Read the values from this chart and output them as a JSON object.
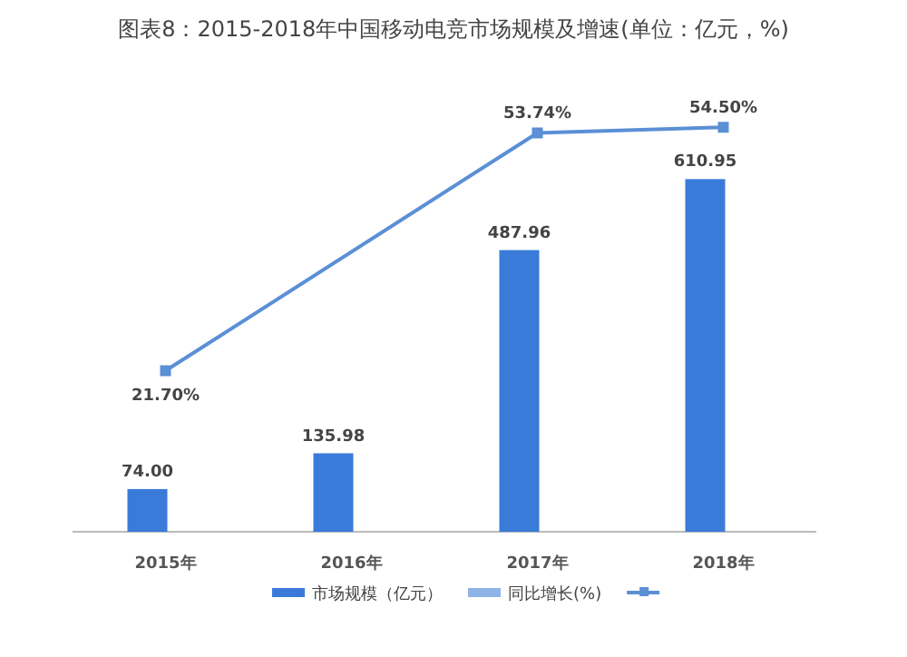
{
  "chart_data": {
    "type": "bar",
    "title": "图表8：2015-2018年中国移动电竞市场规模及增速(单位：亿元，%)",
    "categories": [
      "2015年",
      "2016年",
      "2017年",
      "2018年"
    ],
    "series": [
      {
        "name": "市场规模（亿元）",
        "color": "#3a7bd9",
        "values": [
          74.0,
          135.98,
          487.96,
          610.95
        ],
        "value_labels": [
          "74.00",
          "135.98",
          "487.96",
          "610.95"
        ]
      },
      {
        "name": "同比增长(%)",
        "color": "#8eb3e6",
        "values": [
          null,
          null,
          null,
          null
        ]
      },
      {
        "type": "line",
        "axis": "y2",
        "color": "#5b8fd6",
        "values": [
          21.7,
          null,
          53.74,
          54.5
        ],
        "value_labels": [
          "21.70%",
          null,
          "53.74%",
          "54.50%"
        ]
      }
    ],
    "ylim": [
      0,
      720
    ],
    "y2lim": [
      0,
      56
    ],
    "tick_labels": "x",
    "legend": "bottom",
    "marker": "square"
  }
}
